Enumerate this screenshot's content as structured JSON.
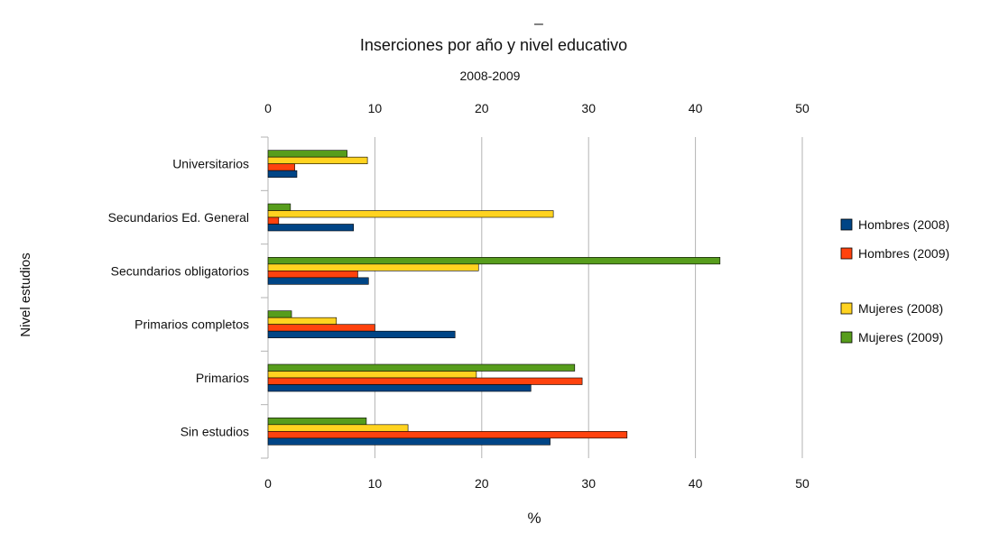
{
  "chart_data": {
    "type": "bar",
    "orientation": "horizontal",
    "title_mark": "_",
    "title": "Inserciones por año y nivel educativo",
    "subtitle": "2008-2009",
    "xlabel": "%",
    "ylabel": "Nivel estudios",
    "xlim": [
      0,
      50
    ],
    "xticks": [
      0,
      10,
      20,
      30,
      40,
      50
    ],
    "grid": true,
    "legend_position": "right",
    "categories": [
      "Universitarios",
      "Secundarios Ed. General",
      "Secundarios obligatorios",
      "Primarios completos",
      "Primarios",
      "Sin estudios"
    ],
    "series": [
      {
        "name": "Hombres (2008)",
        "color": "#004586",
        "values": [
          2.7,
          8.0,
          9.4,
          17.5,
          24.6,
          26.4
        ]
      },
      {
        "name": "Hombres (2009)",
        "color": "#ff420e",
        "values": [
          2.5,
          1.0,
          8.4,
          10.0,
          29.4,
          33.6
        ]
      },
      {
        "name": "Mujeres (2008)",
        "color": "#ffd320",
        "values": [
          9.3,
          26.7,
          19.7,
          6.4,
          19.5,
          13.1
        ]
      },
      {
        "name": "Mujeres (2009)",
        "color": "#579d1c",
        "values": [
          7.4,
          2.1,
          42.3,
          2.2,
          28.7,
          9.2
        ]
      }
    ]
  }
}
